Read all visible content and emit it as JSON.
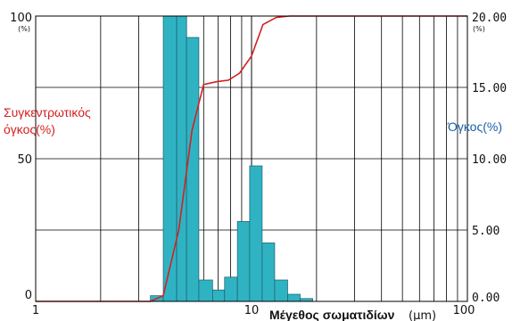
{
  "chart_data": {
    "type": "bar",
    "xlabel": "Μέγεθος σωματιδίων",
    "xlabel_unit": "(μm)",
    "x_scale": "log",
    "xlim": [
      1,
      100
    ],
    "x_ticks": [
      "1",
      "10",
      "100"
    ],
    "left_axis": {
      "label": "Συγκεντρωτικός όγκος(%)",
      "label_line1": "Συγκεντρωτικός",
      "label_line2": "όγκος(%)",
      "ylim": [
        0,
        100
      ],
      "ticks": [
        "0",
        "50",
        "100"
      ],
      "unit": "(%)"
    },
    "right_axis": {
      "label": "Όγκος(%)",
      "ylim": [
        0,
        20
      ],
      "ticks": [
        "0.00",
        "5.00",
        "10.00",
        "15.00",
        "20.00"
      ],
      "unit": "(%)"
    },
    "grid": true,
    "colors": {
      "bars": "#2fb3c3",
      "bar_edge": "#1d5c68",
      "line": "#d42020",
      "grid": "#000000"
    },
    "bars": [
      {
        "x_start": 3.4,
        "x_end": 3.9,
        "value": 0.4
      },
      {
        "x_start": 3.9,
        "x_end": 4.5,
        "value": 20.0
      },
      {
        "x_start": 4.5,
        "x_end": 5.0,
        "value": 20.0
      },
      {
        "x_start": 5.0,
        "x_end": 5.7,
        "value": 18.5
      },
      {
        "x_start": 5.7,
        "x_end": 6.6,
        "value": 1.5
      },
      {
        "x_start": 6.6,
        "x_end": 7.5,
        "value": 0.8
      },
      {
        "x_start": 7.5,
        "x_end": 8.6,
        "value": 1.7
      },
      {
        "x_start": 8.6,
        "x_end": 9.8,
        "value": 5.6
      },
      {
        "x_start": 9.8,
        "x_end": 11.2,
        "value": 9.5
      },
      {
        "x_start": 11.2,
        "x_end": 12.8,
        "value": 4.1
      },
      {
        "x_start": 12.8,
        "x_end": 14.7,
        "value": 1.5
      },
      {
        "x_start": 14.7,
        "x_end": 16.8,
        "value": 0.5
      },
      {
        "x_start": 16.8,
        "x_end": 19.2,
        "value": 0.2
      }
    ],
    "cumulative_line": {
      "x": [
        1.0,
        3.4,
        3.9,
        4.6,
        5.3,
        6.0,
        6.9,
        7.8,
        8.8,
        10.0,
        11.3,
        13.0,
        15.0,
        20.0,
        100.0
      ],
      "y": [
        0,
        0,
        2,
        25,
        60,
        76,
        77,
        77.5,
        80,
        86,
        97,
        99.5,
        100,
        100,
        100
      ]
    }
  }
}
